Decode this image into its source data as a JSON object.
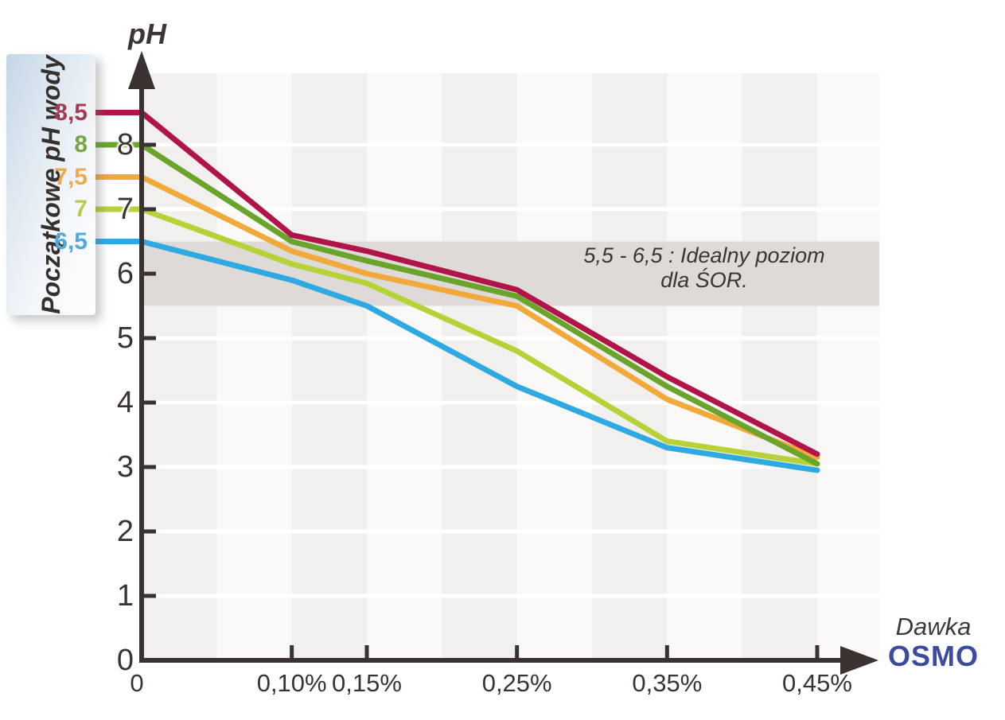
{
  "chart_data": {
    "type": "line",
    "y_axis_title": "pH",
    "x_axis_title": "Dawka",
    "x_axis_brand": "OSMO",
    "legend_title": "Początkowe pH wody",
    "legend_position": "left",
    "x_tick_labels": [
      "0",
      "0,10%",
      "0,15%",
      "0,25%",
      "0,35%",
      "0,45%"
    ],
    "x_values_percent": [
      0,
      0.1,
      0.15,
      0.25,
      0.35,
      0.45
    ],
    "y_tick_labels": [
      "0",
      "1",
      "2",
      "3",
      "4",
      "5",
      "6",
      "7",
      "8"
    ],
    "y_ticks": [
      0,
      1,
      2,
      3,
      4,
      5,
      6,
      7,
      8
    ],
    "ylim": [
      0,
      9.2
    ],
    "grid": "subtle alternating vertical stripes, white horizontal lines at integer pH",
    "ideal_band": {
      "from": 5.5,
      "to": 6.5,
      "label_line1": "5,5 - 6,5 : Idealny poziom",
      "label_line2": "dla ŚOR."
    },
    "series": [
      {
        "name": "8,5",
        "color": "#b11448",
        "label_color": "#a63c54",
        "values": [
          8.5,
          6.6,
          6.35,
          5.75,
          4.4,
          3.2
        ]
      },
      {
        "name": "8",
        "color": "#6aa42b",
        "label_color": "#74a642",
        "values": [
          8.0,
          6.5,
          6.2,
          5.65,
          4.25,
          3.05
        ]
      },
      {
        "name": "7,5",
        "color": "#f2a93c",
        "label_color": "#eeaa4a",
        "values": [
          7.5,
          6.35,
          6.0,
          5.5,
          4.05,
          3.15
        ]
      },
      {
        "name": "7",
        "color": "#b6d238",
        "label_color": "#b7cd52",
        "values": [
          7.0,
          6.15,
          5.85,
          4.8,
          3.4,
          3.05
        ]
      },
      {
        "name": "6,5",
        "color": "#2fa9e1",
        "label_color": "#4fabdd",
        "values": [
          6.5,
          5.9,
          5.5,
          4.25,
          3.3,
          2.95
        ]
      }
    ],
    "colors": {
      "axis": "#3a3231",
      "band": "#dedad7",
      "stripe_dark": "#f2f0ee",
      "stripe_light": "#faf9f7",
      "gridline": "#ffffff",
      "osmo_blue": "#3c4b9f",
      "text": "#3a3433"
    }
  }
}
